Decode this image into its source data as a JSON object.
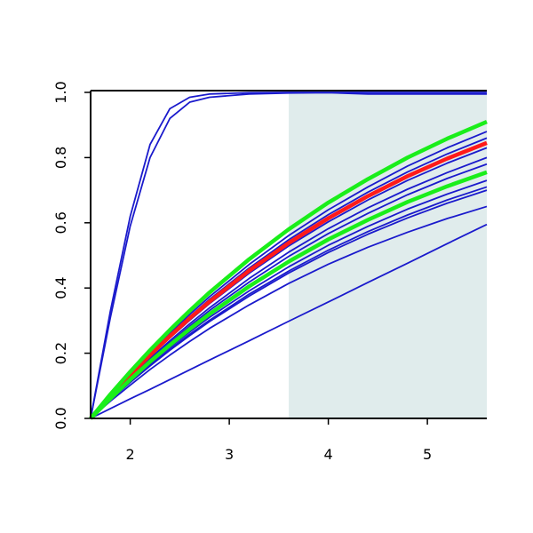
{
  "chart_data": {
    "type": "line",
    "x": [
      1.6,
      1.8,
      2.0,
      2.2,
      2.4,
      2.6,
      2.8,
      3.2,
      3.6,
      4.0,
      4.4,
      4.8,
      5.2,
      5.6
    ],
    "xlim": [
      1.6,
      5.6
    ],
    "xticks": [
      2,
      3,
      4,
      5
    ],
    "ylim": [
      0,
      1
    ],
    "yticks": [
      {
        "value": 0,
        "label": "0.0"
      },
      0.2,
      0.4,
      0.6,
      0.8,
      {
        "value": 1,
        "label": "1.0"
      }
    ],
    "highlight_xrange": [
      3.6,
      5.6
    ],
    "highlight_color": "#e0ecec",
    "series": [
      {
        "color": "#1a1acc",
        "values": [
          0,
          0.33,
          0.62,
          0.84,
          0.95,
          0.985,
          0.995,
          0.999,
          1,
          1,
          1,
          1,
          1,
          1
        ]
      },
      {
        "color": "#1a1acc",
        "values": [
          0,
          0.31,
          0.59,
          0.8,
          0.92,
          0.97,
          0.985,
          0.995,
          0.998,
          0.999,
          0.995,
          0.995,
          0.995,
          0.995
        ]
      },
      {
        "color": "#1a1acc",
        "values": [
          0,
          0.071,
          0.139,
          0.202,
          0.262,
          0.319,
          0.373,
          0.472,
          0.561,
          0.64,
          0.71,
          0.774,
          0.83,
          0.88
        ]
      },
      {
        "color": "#1a1acc",
        "values": [
          0,
          0.07,
          0.135,
          0.198,
          0.256,
          0.312,
          0.365,
          0.461,
          0.548,
          0.625,
          0.694,
          0.756,
          0.811,
          0.86
        ]
      },
      {
        "color": "#1a1acc",
        "values": [
          0,
          0.067,
          0.131,
          0.191,
          0.247,
          0.301,
          0.352,
          0.445,
          0.529,
          0.603,
          0.67,
          0.73,
          0.783,
          0.83
        ]
      },
      {
        "color": "#1a1acc",
        "values": [
          0,
          0.065,
          0.126,
          0.184,
          0.238,
          0.29,
          0.339,
          0.429,
          0.51,
          0.582,
          0.646,
          0.703,
          0.754,
          0.8
        ]
      },
      {
        "color": "#1a1acc",
        "values": [
          0,
          0.063,
          0.123,
          0.179,
          0.232,
          0.283,
          0.331,
          0.418,
          0.497,
          0.567,
          0.629,
          0.686,
          0.736,
          0.78
        ]
      },
      {
        "color": "#1a1acc",
        "values": [
          0,
          0.059,
          0.115,
          0.168,
          0.218,
          0.265,
          0.31,
          0.391,
          0.465,
          0.531,
          0.589,
          0.642,
          0.688,
          0.73
        ]
      },
      {
        "color": "#1a1acc",
        "values": [
          0,
          0.058,
          0.112,
          0.163,
          0.212,
          0.258,
          0.301,
          0.381,
          0.452,
          0.516,
          0.573,
          0.624,
          0.67,
          0.71
        ]
      },
      {
        "color": "#1a1acc",
        "values": [
          0,
          0.057,
          0.11,
          0.161,
          0.209,
          0.254,
          0.297,
          0.375,
          0.446,
          0.509,
          0.565,
          0.615,
          0.66,
          0.7
        ]
      },
      {
        "color": "#1a1acc",
        "values": [
          0,
          0.053,
          0.102,
          0.15,
          0.194,
          0.236,
          0.276,
          0.348,
          0.414,
          0.473,
          0.525,
          0.571,
          0.613,
          0.65
        ]
      },
      {
        "color": "#1a1acc",
        "values": [
          0,
          0.03,
          0.06,
          0.089,
          0.119,
          0.149,
          0.179,
          0.238,
          0.298,
          0.357,
          0.417,
          0.476,
          0.536,
          0.595
        ]
      },
      {
        "color": "#ff1a1a",
        "values": [
          0,
          0.068,
          0.133,
          0.194,
          0.252,
          0.307,
          0.358,
          0.453,
          0.538,
          0.614,
          0.682,
          0.743,
          0.797,
          0.845
        ]
      },
      {
        "color": "#1aee1a",
        "values": [
          0,
          0.061,
          0.119,
          0.174,
          0.225,
          0.274,
          0.32,
          0.405,
          0.481,
          0.549,
          0.609,
          0.664,
          0.712,
          0.755
        ]
      },
      {
        "color": "#1aee1a",
        "values": [
          0,
          0.074,
          0.143,
          0.209,
          0.271,
          0.33,
          0.386,
          0.488,
          0.58,
          0.662,
          0.734,
          0.8,
          0.858,
          0.91
        ]
      }
    ]
  }
}
